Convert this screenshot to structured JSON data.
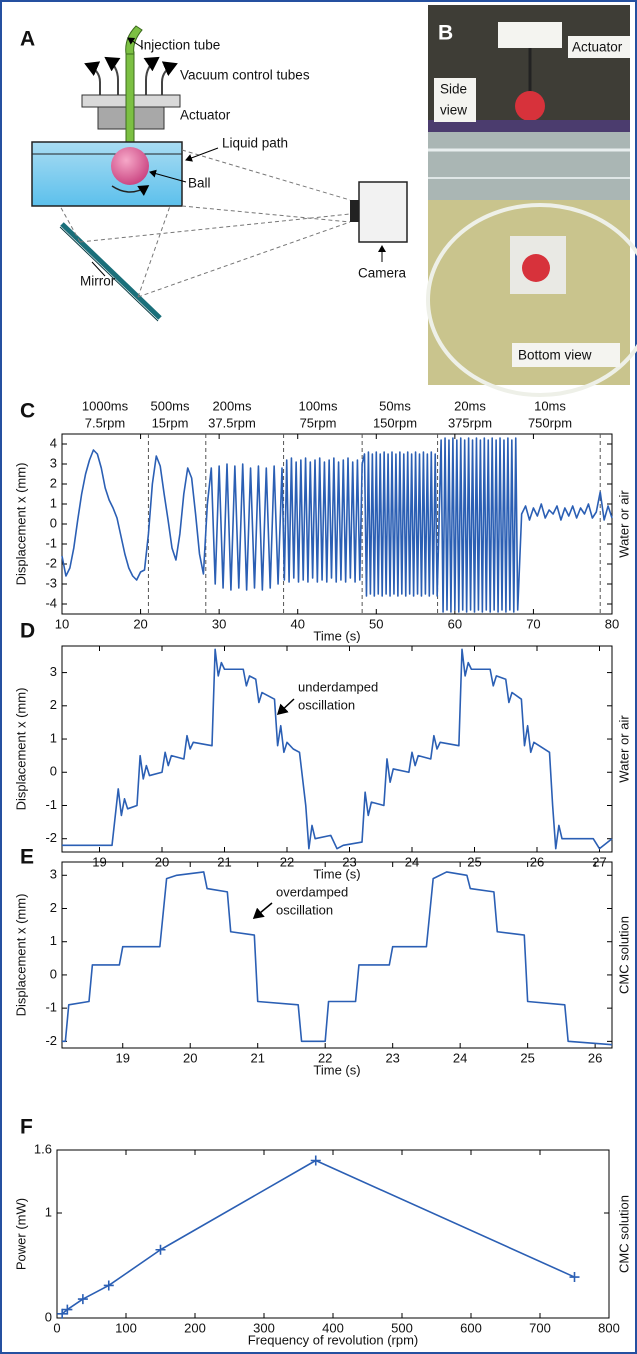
{
  "diagram_a": {
    "label": "A",
    "injection_tube": "Injection tube",
    "vacuum_tubes": "Vacuum control tubes",
    "actuator": "Actuator",
    "liquid_path": "Liquid path",
    "ball": "Ball",
    "camera": "Camera",
    "mirror": "Mirror"
  },
  "photo_b": {
    "label": "B",
    "actuator": "Actuator",
    "side_view": [
      "Side",
      "view"
    ],
    "bottom_view": "Bottom view"
  },
  "chart_data": [
    {
      "type": "line",
      "panel_label": "C",
      "period_labels": [
        [
          "1000ms",
          "7.5rpm"
        ],
        [
          "500ms",
          "15rpm"
        ],
        [
          "200ms",
          "37.5rpm"
        ],
        [
          "100ms",
          "75rpm"
        ],
        [
          "50ms",
          "150rpm"
        ],
        [
          "20ms",
          "375rpm"
        ],
        [
          "10ms",
          "750rpm"
        ]
      ],
      "dividers": [
        21,
        28.3,
        38.2,
        48.2,
        57.8,
        78.5
      ],
      "xlabel": "Time (s)",
      "ylabel": "Displacement x (mm)",
      "side_label": "Water or air",
      "xlim": [
        10,
        80
      ],
      "ylim": [
        -4.5,
        4.5
      ],
      "xticks": [
        10,
        20,
        30,
        40,
        50,
        60,
        70,
        80
      ],
      "yticks": [
        -4,
        -3,
        -2,
        -1,
        0,
        1,
        2,
        3,
        4
      ],
      "x": [
        10,
        10.5,
        11,
        11.5,
        12,
        12.5,
        13,
        13.5,
        14,
        14.5,
        15,
        15.5,
        16,
        16.5,
        17,
        17.5,
        18,
        18.5,
        19,
        19.5,
        20,
        20.5,
        21,
        21.5,
        22,
        22.5,
        23,
        23.5,
        24,
        24.5,
        25,
        25.5,
        26,
        26.5,
        27,
        27.5,
        28,
        28.5,
        29,
        29.5,
        30,
        30.5,
        31,
        31.5,
        32,
        32.5,
        33,
        33.5,
        34,
        34.5,
        35,
        35.5,
        36,
        36.5,
        37,
        37.5,
        38,
        38.3,
        38.6,
        38.9,
        39.2,
        39.5,
        39.8,
        40.1,
        40.4,
        40.7,
        41,
        41.3,
        41.6,
        41.9,
        42.2,
        42.5,
        42.8,
        43.1,
        43.4,
        43.7,
        44,
        44.3,
        44.6,
        44.9,
        45.2,
        45.5,
        45.8,
        46.1,
        46.4,
        46.7,
        47,
        47.3,
        47.6,
        47.9,
        48.2,
        48.5,
        48.75,
        49,
        49.25,
        49.5,
        49.75,
        50,
        50.25,
        50.5,
        50.75,
        51,
        51.25,
        51.5,
        51.75,
        52,
        52.25,
        52.5,
        52.75,
        53,
        53.25,
        53.5,
        53.75,
        54,
        54.25,
        54.5,
        54.75,
        55,
        55.25,
        55.5,
        55.75,
        56,
        56.25,
        56.5,
        56.75,
        57,
        57.25,
        57.5,
        57.75,
        58.25,
        58.5,
        58.75,
        59,
        59.25,
        59.5,
        59.75,
        60,
        60.25,
        60.5,
        60.75,
        61,
        61.25,
        61.5,
        61.75,
        62,
        62.25,
        62.5,
        62.75,
        63,
        63.25,
        63.5,
        63.75,
        64,
        64.25,
        64.5,
        64.75,
        65,
        65.25,
        65.5,
        65.75,
        66,
        66.25,
        66.5,
        66.75,
        67,
        67.25,
        67.5,
        67.75,
        68,
        68.5,
        69,
        69.5,
        70,
        70.5,
        71,
        71.5,
        72,
        72.5,
        73,
        73.5,
        74,
        74.5,
        75,
        75.5,
        76,
        76.5,
        77,
        77.5,
        78,
        78.5,
        79,
        79.5,
        80
      ],
      "series": [
        {
          "color": "#2b5fb4",
          "values": [
            -1.6,
            -2.6,
            -2.2,
            -1.2,
            0.2,
            1.5,
            2.5,
            3.2,
            3.7,
            3.5,
            2.8,
            1.8,
            1.2,
            0.8,
            0.3,
            -0.6,
            -1.5,
            -2.2,
            -2.6,
            -2.8,
            -2.4,
            -2.3,
            -0.5,
            2.0,
            3.4,
            2.9,
            1.5,
            0.2,
            -1.2,
            -1.8,
            -0.5,
            1.5,
            2.8,
            2.3,
            0.5,
            -1.5,
            -2.5,
            1.0,
            2.8,
            -3.0,
            2.9,
            -3.2,
            3.0,
            -3.3,
            2.9,
            -3.2,
            3.0,
            -3.3,
            2.8,
            -3.2,
            2.9,
            -3.3,
            2.8,
            -3.2,
            2.9,
            -3.0,
            2.8,
            -2.8,
            3.2,
            -2.9,
            3.3,
            -2.7,
            3.1,
            -2.9,
            3.2,
            -2.8,
            3.3,
            -2.9,
            3.1,
            -2.7,
            3.2,
            -2.9,
            3.3,
            -2.8,
            3.1,
            -2.9,
            3.2,
            -2.7,
            3.3,
            -2.9,
            3.1,
            -2.8,
            3.2,
            -2.9,
            3.3,
            -2.7,
            3.1,
            -2.9,
            3.2,
            -2.8,
            3.0,
            3.5,
            -3.6,
            3.6,
            -3.5,
            3.5,
            -3.6,
            3.6,
            -3.5,
            3.5,
            -3.6,
            3.6,
            -3.5,
            3.5,
            -3.6,
            3.6,
            -3.5,
            3.5,
            -3.6,
            3.6,
            -3.5,
            3.5,
            -3.6,
            3.6,
            -3.5,
            3.5,
            -3.6,
            3.6,
            -3.5,
            3.5,
            -3.6,
            3.6,
            -3.5,
            3.5,
            -3.6,
            3.6,
            -3.5,
            3.5,
            -3.6,
            4.2,
            -4.4,
            4.3,
            -4.3,
            4.2,
            -4.4,
            4.3,
            -4.3,
            4.2,
            -4.4,
            4.3,
            -4.3,
            4.2,
            -4.4,
            4.3,
            -4.3,
            4.2,
            -4.4,
            4.3,
            -4.3,
            4.2,
            -4.4,
            4.3,
            -4.3,
            4.2,
            -4.4,
            4.3,
            -4.3,
            4.2,
            -4.4,
            4.3,
            -4.3,
            4.2,
            -4.4,
            4.3,
            -4.3,
            4.2,
            -4.4,
            4.3,
            -4.3,
            0.5,
            0.9,
            0.2,
            0.8,
            0.4,
            1.0,
            0.3,
            0.7,
            0.5,
            0.9,
            0.2,
            0.8,
            0.4,
            0.9,
            0.3,
            0.8,
            0.5,
            1.0,
            0.3,
            0.6,
            1.6,
            0.2,
            0.9,
            0.3
          ]
        }
      ]
    },
    {
      "type": "line",
      "panel_label": "D",
      "annotation": [
        "underdamped",
        "oscillation"
      ],
      "xlabel": "Time (s)",
      "ylabel": "Displacement x (mm)",
      "side_label": "Water or air",
      "xlim": [
        18.4,
        27.2
      ],
      "ylim": [
        -2.4,
        3.8
      ],
      "xticks": [
        19,
        20,
        21,
        22,
        23,
        24,
        25,
        26,
        27
      ],
      "yticks": [
        -2,
        -1,
        0,
        1,
        2,
        3
      ],
      "x": [
        18.4,
        19.2,
        19.3,
        19.35,
        19.4,
        19.45,
        19.6,
        19.65,
        19.7,
        19.75,
        19.8,
        20.0,
        20.05,
        20.1,
        20.15,
        20.35,
        20.4,
        20.45,
        20.5,
        20.8,
        20.85,
        20.9,
        20.95,
        21.0,
        21.3,
        21.35,
        21.4,
        21.5,
        21.55,
        21.6,
        21.8,
        21.85,
        21.9,
        21.95,
        22.0,
        22.1,
        22.2,
        22.3,
        22.35,
        22.4,
        22.45,
        22.7,
        22.8,
        22.9,
        23.2,
        23.25,
        23.3,
        23.35,
        23.55,
        23.6,
        23.65,
        23.7,
        23.95,
        24.0,
        24.05,
        24.1,
        24.3,
        24.35,
        24.4,
        24.45,
        24.75,
        24.8,
        24.85,
        24.9,
        24.95,
        25.25,
        25.3,
        25.35,
        25.5,
        25.55,
        25.6,
        25.75,
        25.8,
        25.85,
        25.9,
        25.95,
        26.2,
        26.25,
        26.3,
        26.35,
        26.4,
        26.9,
        27.0,
        27.2
      ],
      "series": [
        {
          "color": "#2b5fb4",
          "values": [
            -2.2,
            -2.2,
            -0.5,
            -1.3,
            -0.8,
            -1.1,
            -1.0,
            0.5,
            -0.2,
            0.2,
            -0.1,
            0.0,
            0.6,
            0.2,
            0.5,
            0.4,
            1.1,
            0.7,
            0.9,
            0.8,
            3.7,
            2.9,
            3.3,
            3.1,
            3.1,
            2.6,
            2.9,
            2.8,
            2.1,
            2.4,
            2.2,
            0.8,
            1.4,
            0.6,
            0.9,
            0.7,
            0.6,
            -1.0,
            -2.3,
            -1.6,
            -2.0,
            -1.9,
            -2.3,
            -2.2,
            -2.1,
            -0.6,
            -1.3,
            -0.9,
            -1.0,
            0.4,
            -0.3,
            0.1,
            0.0,
            0.6,
            0.2,
            0.5,
            0.4,
            1.1,
            0.7,
            0.9,
            0.8,
            3.7,
            2.9,
            3.3,
            3.1,
            3.1,
            2.6,
            2.9,
            2.8,
            2.1,
            2.4,
            2.2,
            0.8,
            1.4,
            0.6,
            0.9,
            0.6,
            -1.0,
            -2.3,
            -1.6,
            -2.0,
            -2.0,
            -2.3,
            -2.0
          ]
        }
      ]
    },
    {
      "type": "line",
      "panel_label": "E",
      "annotation": [
        "overdamped",
        "oscillation"
      ],
      "xlabel": "Time (s)",
      "ylabel": "Displacement x (mm)",
      "side_label": "CMC solution",
      "xlim": [
        18.1,
        26.25
      ],
      "ylim": [
        -2.2,
        3.4
      ],
      "xticks": [
        19,
        20,
        21,
        22,
        23,
        24,
        25,
        26
      ],
      "yticks": [
        -2,
        -1,
        0,
        1,
        2,
        3
      ],
      "x": [
        18.1,
        18.15,
        18.2,
        18.5,
        18.55,
        18.95,
        19.0,
        19.55,
        19.65,
        19.8,
        20.2,
        20.25,
        20.55,
        20.6,
        20.95,
        21.0,
        21.6,
        21.65,
        22.0,
        22.05,
        22.45,
        22.5,
        22.95,
        23.0,
        23.5,
        23.6,
        23.8,
        24.1,
        24.15,
        24.5,
        24.55,
        24.95,
        25.0,
        25.55,
        25.6,
        26.25
      ],
      "series": [
        {
          "color": "#2b5fb4",
          "values": [
            -2.0,
            -2.0,
            -0.9,
            -0.8,
            0.3,
            0.3,
            0.85,
            0.85,
            2.9,
            3.0,
            3.1,
            2.6,
            2.5,
            1.3,
            1.2,
            -0.8,
            -0.9,
            -2.0,
            -2.0,
            -0.8,
            -0.8,
            0.3,
            0.3,
            0.85,
            0.85,
            2.9,
            3.1,
            3.0,
            2.6,
            2.5,
            1.3,
            1.2,
            -0.8,
            -0.9,
            -2.0,
            -2.1
          ]
        }
      ]
    },
    {
      "type": "line",
      "panel_label": "F",
      "marker": "+",
      "xlabel": "Frequency of revolution (rpm)",
      "ylabel": "Power (mW)",
      "side_label": "CMC solution",
      "xlim": [
        0,
        800
      ],
      "ylim": [
        0,
        1.6
      ],
      "xticks": [
        0,
        100,
        200,
        300,
        400,
        500,
        600,
        700,
        800
      ],
      "yticks": [
        0,
        1,
        1.6
      ],
      "x": [
        7.5,
        15,
        37.5,
        75,
        150,
        375,
        750
      ],
      "series": [
        {
          "color": "#2b5fb4",
          "values": [
            0.04,
            0.08,
            0.18,
            0.31,
            0.65,
            1.5,
            0.39
          ]
        }
      ]
    }
  ]
}
